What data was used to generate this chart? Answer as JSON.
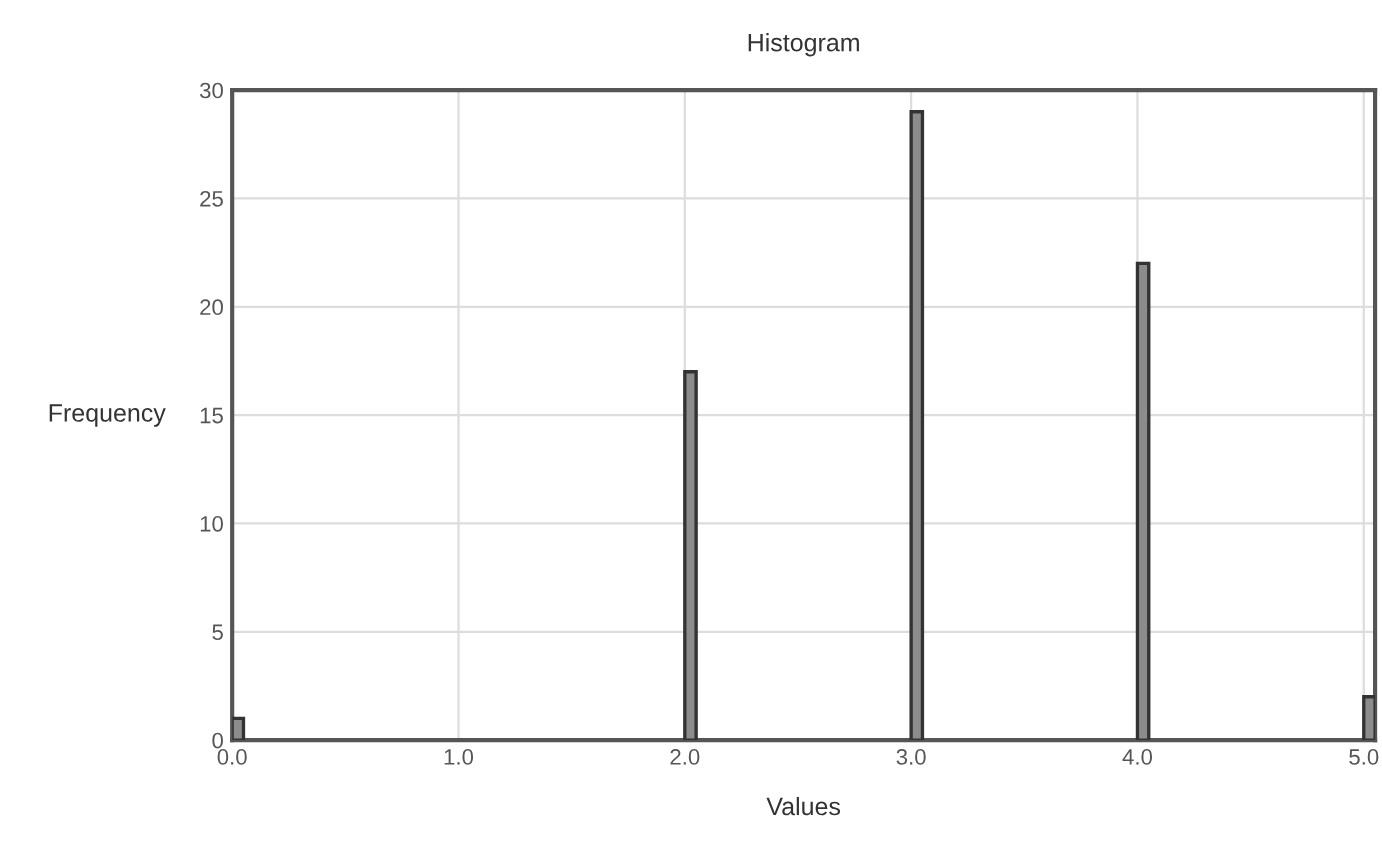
{
  "chart_data": {
    "type": "histogram",
    "title": "Histogram",
    "xlabel": "Values",
    "ylabel": "Frequency",
    "bins": [
      0,
      0.05,
      0.1,
      0.15,
      0.2,
      0.25,
      0.3,
      0.35,
      0.4,
      0.45,
      0.5,
      0.55,
      0.6,
      0.65,
      0.7,
      0.75,
      0.8,
      0.85,
      0.9,
      0.95,
      1,
      1.05,
      1.1,
      1.15,
      1.2,
      1.25,
      1.3,
      1.35,
      1.4,
      1.45,
      1.5,
      1.55,
      1.6,
      1.65,
      1.7,
      1.75,
      1.8,
      1.85,
      1.9,
      1.95,
      2,
      2.05,
      2.1,
      2.15,
      2.2,
      2.25,
      2.3,
      2.35,
      2.4,
      2.45,
      2.5,
      2.55,
      2.6,
      2.65,
      2.7,
      2.75,
      2.8,
      2.85,
      2.9,
      2.95,
      3,
      3.05,
      3.1,
      3.15,
      3.2,
      3.25,
      3.3,
      3.35,
      3.4,
      3.45,
      3.5,
      3.55,
      3.6,
      3.65,
      3.7,
      3.75,
      3.8,
      3.85,
      3.9,
      3.95,
      4,
      4.05,
      4.1,
      4.15,
      4.2,
      4.25,
      4.3,
      4.35,
      4.4,
      4.45,
      4.5,
      4.55,
      4.6,
      4.65,
      4.7,
      4.75,
      4.8,
      4.85,
      4.9,
      4.95,
      5,
      5.05
    ],
    "values": [
      1,
      0,
      0,
      0,
      0,
      0,
      0,
      0,
      0,
      0,
      0,
      0,
      0,
      0,
      0,
      0,
      0,
      0,
      0,
      0,
      0,
      0,
      0,
      0,
      0,
      0,
      0,
      0,
      0,
      0,
      0,
      0,
      0,
      0,
      0,
      0,
      0,
      0,
      0,
      0,
      17,
      0,
      0,
      0,
      0,
      0,
      0,
      0,
      0,
      0,
      0,
      0,
      0,
      0,
      0,
      0,
      0,
      0,
      0,
      0,
      29,
      0,
      0,
      0,
      0,
      0,
      0,
      0,
      0,
      0,
      0,
      0,
      0,
      0,
      0,
      0,
      0,
      0,
      0,
      0,
      22,
      0,
      0,
      0,
      0,
      0,
      0,
      0,
      0,
      0,
      0,
      0,
      0,
      0,
      0,
      0,
      0,
      0,
      0,
      0,
      2
    ],
    "color": "#8c8c8c",
    "xlim": [
      0,
      5.05
    ],
    "ylim": [
      0,
      30
    ],
    "xticks": [
      {
        "value": 0,
        "label": "0.0"
      },
      {
        "value": 1,
        "label": "1.0"
      },
      {
        "value": 2,
        "label": "2.0"
      },
      {
        "value": 3,
        "label": "3.0"
      },
      {
        "value": 4,
        "label": "4.0"
      },
      {
        "value": 5,
        "label": "5.0"
      }
    ],
    "yticks": [
      0,
      5,
      10,
      15,
      20,
      25,
      30
    ],
    "grid": true
  }
}
